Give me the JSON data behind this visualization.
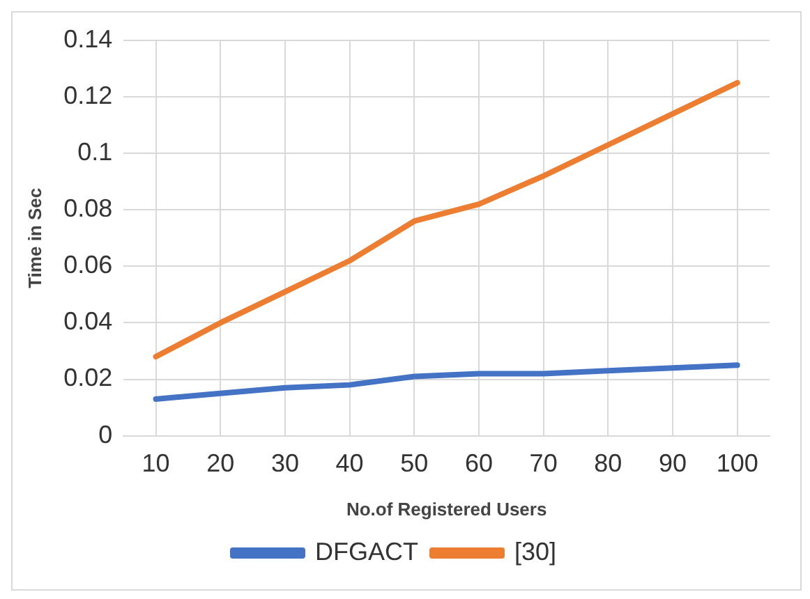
{
  "chart_data": {
    "type": "line",
    "xlabel": "No.of Registered Users",
    "ylabel": "Time in Sec",
    "categories": [
      "10",
      "20",
      "30",
      "40",
      "50",
      "60",
      "70",
      "80",
      "90",
      "100"
    ],
    "series": [
      {
        "name": "DFGACT",
        "color": "#4472c4",
        "values": [
          0.013,
          0.015,
          0.017,
          0.018,
          0.021,
          0.022,
          0.022,
          0.023,
          0.024,
          0.025
        ]
      },
      {
        "name": "[30]",
        "color": "#ed7d31",
        "values": [
          0.028,
          0.04,
          0.051,
          0.062,
          0.076,
          0.082,
          0.092,
          0.103,
          0.114,
          0.125
        ]
      }
    ],
    "ylim": [
      0,
      0.14
    ],
    "yticks": [
      0,
      0.02,
      0.04,
      0.06,
      0.08,
      0.1,
      0.12,
      0.14
    ],
    "grid": true,
    "legend": "bottom",
    "marker": "none",
    "line_style": "solid"
  }
}
